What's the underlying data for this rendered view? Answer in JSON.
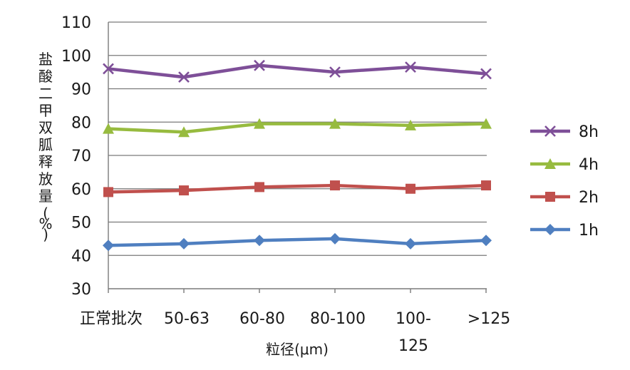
{
  "chart_data": {
    "type": "line",
    "categories": [
      [
        "正常批次"
      ],
      [
        "50-63"
      ],
      [
        "60-80"
      ],
      [
        "80-100"
      ],
      [
        "100-",
        "125"
      ],
      [
        ">125"
      ]
    ],
    "series": [
      {
        "name": "8h",
        "color": "#7e4f98",
        "marker": "x",
        "values": [
          96,
          93.5,
          97,
          95,
          96.5,
          94.5
        ]
      },
      {
        "name": "4h",
        "color": "#97bb3f",
        "marker": "triangle",
        "values": [
          78,
          77,
          79.5,
          79.5,
          79,
          79.5
        ]
      },
      {
        "name": "2h",
        "color": "#c0504d",
        "marker": "square",
        "values": [
          59,
          59.5,
          60.5,
          61,
          60,
          61
        ]
      },
      {
        "name": "1h",
        "color": "#4f7fc0",
        "marker": "diamond",
        "values": [
          43,
          43.5,
          44.5,
          45,
          43.5,
          44.5
        ]
      }
    ],
    "xlabel": "粒径(μm)",
    "ylabel": "盐酸二甲双胍释放量(%)",
    "ylim": [
      30,
      110
    ],
    "yticks": [
      30,
      40,
      50,
      60,
      70,
      80,
      90,
      100,
      110
    ],
    "grid": true,
    "legend_position": "right"
  }
}
